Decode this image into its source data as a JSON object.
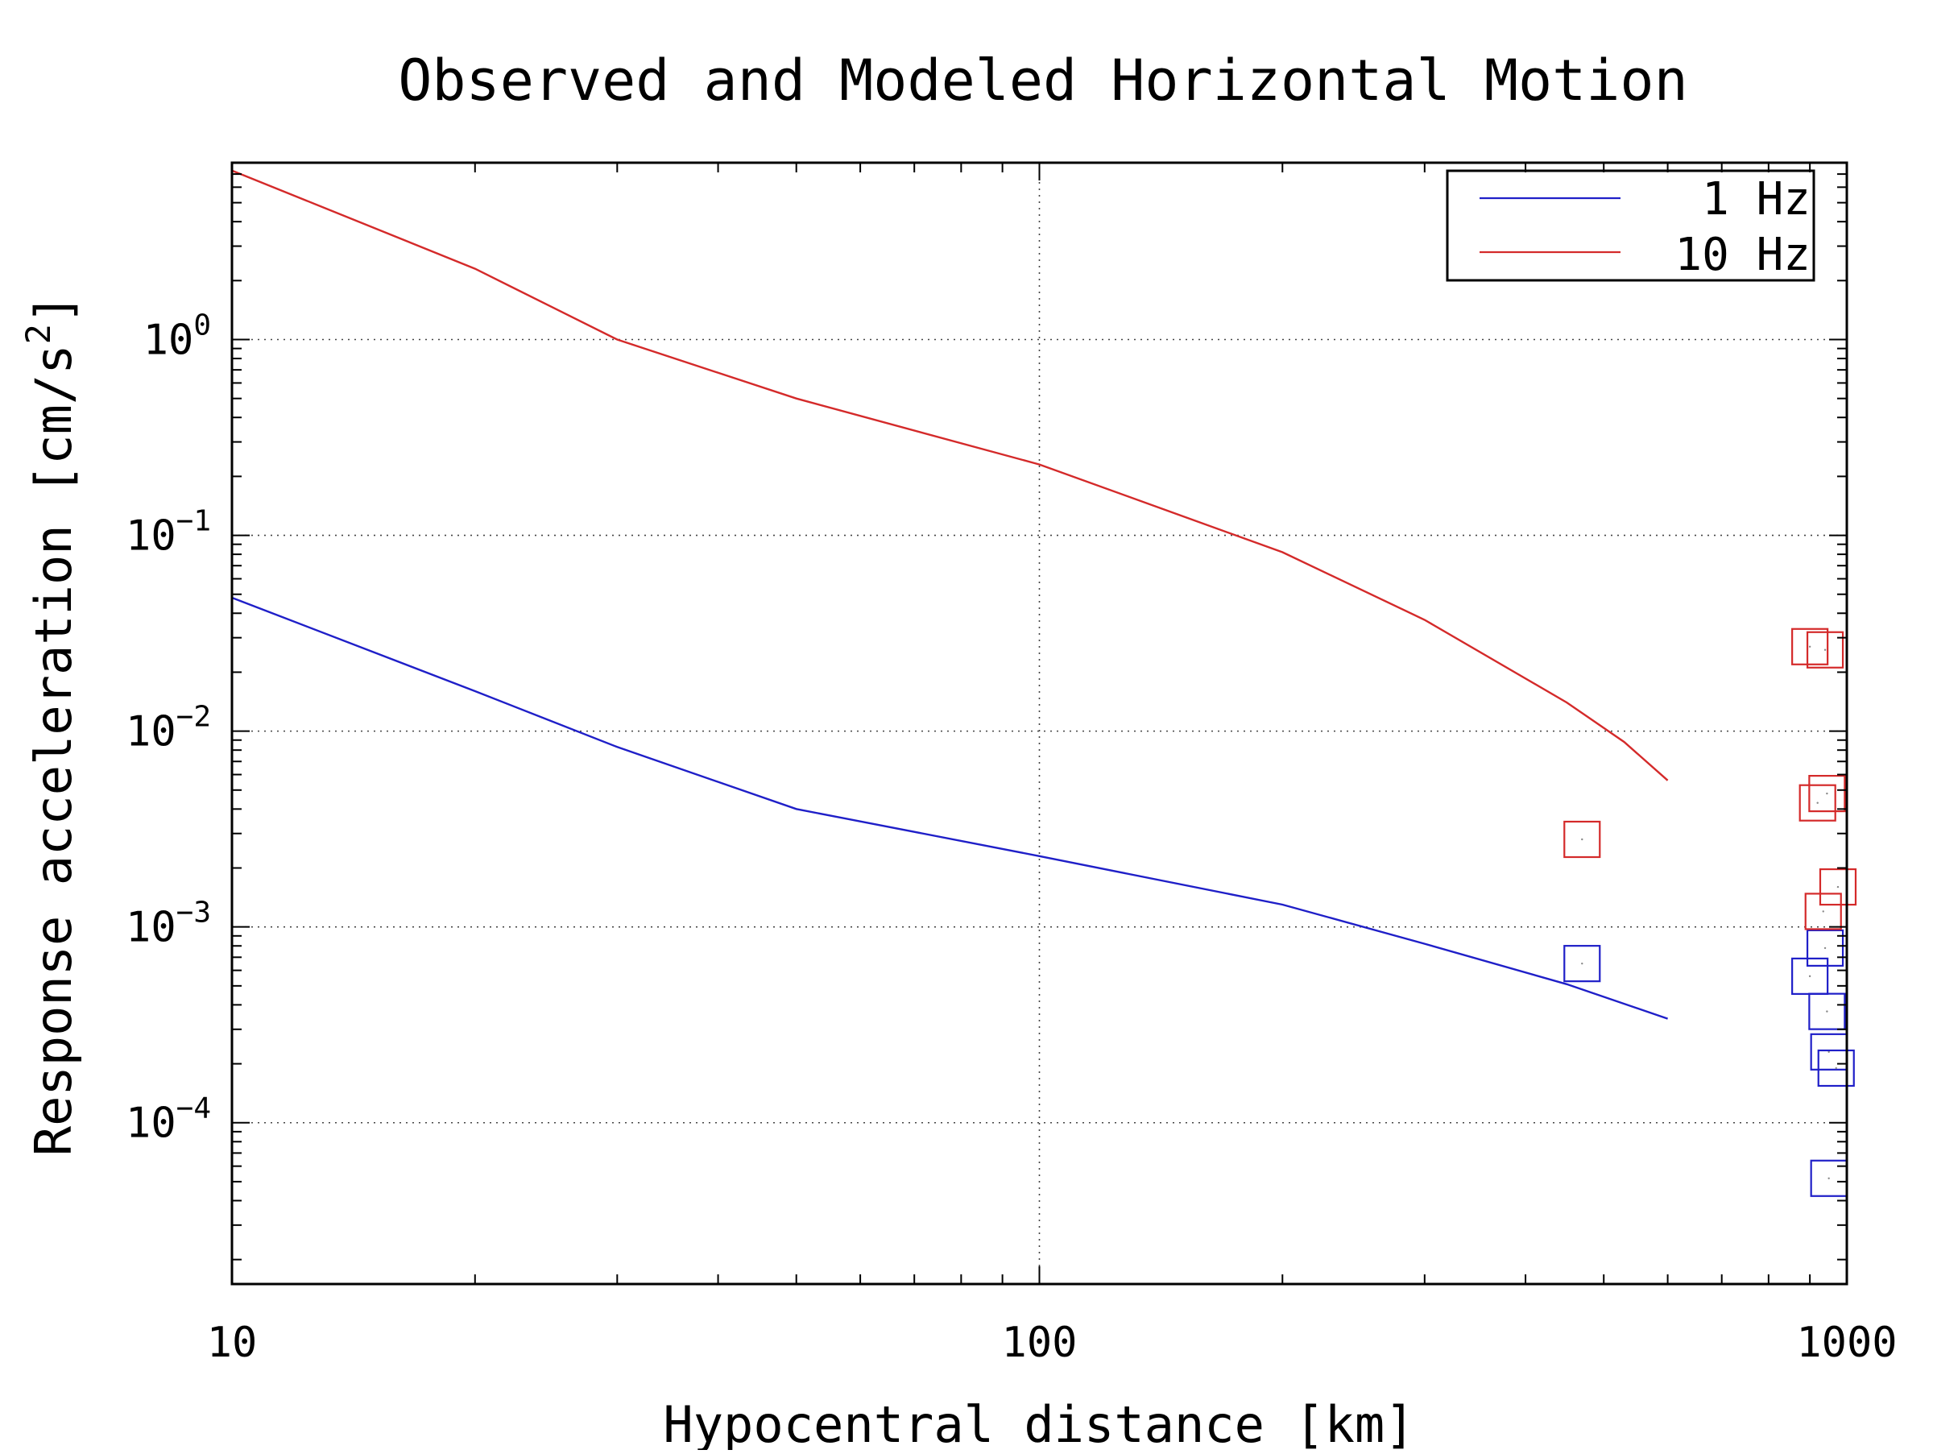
{
  "chart_data": {
    "type": "line",
    "title": "Observed and Modeled Horizontal Motion",
    "xlabel": "Hypocentral distance [km]",
    "ylabel": "Response acceleration [cm/s²]",
    "ylabel_parts": {
      "main": "Response acceleration [cm/s",
      "sup": "2",
      "end": "]"
    },
    "x_scale": "log",
    "y_scale": "log",
    "xlim": [
      10,
      1000
    ],
    "ylim": [
      1.5e-05,
      8
    ],
    "x_ticks": [
      {
        "value": 10,
        "label": "10"
      },
      {
        "value": 100,
        "label": "100"
      },
      {
        "value": 1000,
        "label": "1000"
      }
    ],
    "y_ticks": [
      {
        "value": 1,
        "base": "10",
        "exp": "0"
      },
      {
        "value": 0.1,
        "base": "10",
        "exp": "−1"
      },
      {
        "value": 0.01,
        "base": "10",
        "exp": "−2"
      },
      {
        "value": 0.001,
        "base": "10",
        "exp": "−3"
      },
      {
        "value": 0.0001,
        "base": "10",
        "exp": "−4"
      }
    ],
    "grid": true,
    "legend_position": "top-right",
    "series": [
      {
        "name": "1 Hz",
        "color": "#1f1fc8",
        "kind": "line",
        "x": [
          10,
          20,
          30,
          50,
          100,
          200,
          300,
          450,
          600
        ],
        "y": [
          0.048,
          0.016,
          0.0083,
          0.004,
          0.0023,
          0.0013,
          0.00082,
          0.00051,
          0.00034
        ]
      },
      {
        "name": "10 Hz",
        "color": "#d42a2a",
        "kind": "line",
        "x": [
          10,
          20,
          30,
          50,
          100,
          200,
          300,
          450,
          530,
          600
        ],
        "y": [
          7.3,
          2.3,
          1.0,
          0.5,
          0.23,
          0.082,
          0.037,
          0.014,
          0.0088,
          0.0056
        ]
      },
      {
        "name": "1 Hz",
        "color": "#1f1fc8",
        "kind": "markers",
        "x": [
          470,
          900,
          940,
          945,
          950,
          950,
          970
        ],
        "y": [
          0.00065,
          0.00056,
          0.00078,
          0.00037,
          0.00023,
          5.2e-05,
          0.00019
        ]
      },
      {
        "name": "10 Hz",
        "color": "#d42a2a",
        "kind": "markers",
        "x": [
          470,
          900,
          940,
          920,
          945,
          935,
          975
        ],
        "y": [
          0.0028,
          0.027,
          0.026,
          0.0043,
          0.0048,
          0.0012,
          0.0016
        ]
      }
    ]
  }
}
